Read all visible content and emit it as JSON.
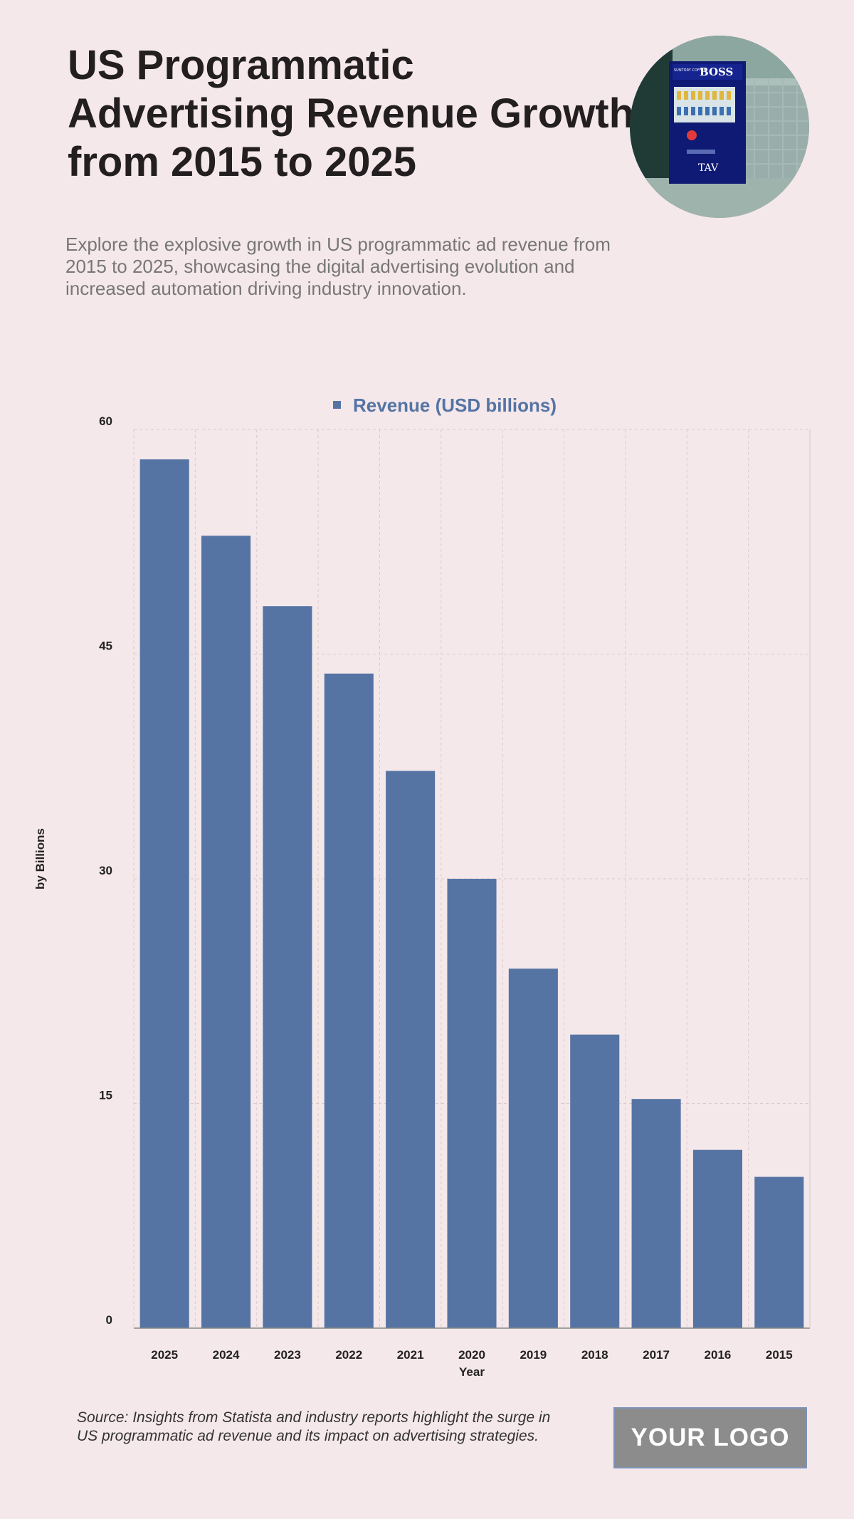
{
  "header": {
    "title": "US Programmatic Advertising Revenue Growth from 2015 to 2025",
    "subtitle": "Explore the explosive growth in US programmatic ad revenue from 2015 to 2025, showcasing the digital advertising evolution and increased automation driving industry innovation."
  },
  "photo": {
    "machine_brand": "BOSS",
    "machine_small": "SUNTORY COFFEE",
    "machine_bottom": "TAV"
  },
  "chart_data": {
    "type": "bar",
    "title": "",
    "xlabel": "Year",
    "ylabel": "by Billions",
    "ylim": [
      0,
      60
    ],
    "yticks": [
      0,
      15,
      30,
      45,
      60
    ],
    "grid": true,
    "legend_position": "top-center",
    "categories": [
      "2025",
      "2024",
      "2023",
      "2022",
      "2021",
      "2020",
      "2019",
      "2018",
      "2017",
      "2016",
      "2015"
    ],
    "series": [
      {
        "name": "Revenue (USD billions)",
        "color": "#5574a4",
        "values": [
          58,
          52.9,
          48.2,
          43.7,
          37.2,
          30,
          24,
          19.6,
          15.3,
          11.9,
          10.1
        ]
      }
    ]
  },
  "footer": {
    "source": "Source: Insights from Statista and industry reports highlight the surge in US programmatic ad revenue and its impact on advertising strategies.",
    "logo": "YOUR LOGO"
  }
}
